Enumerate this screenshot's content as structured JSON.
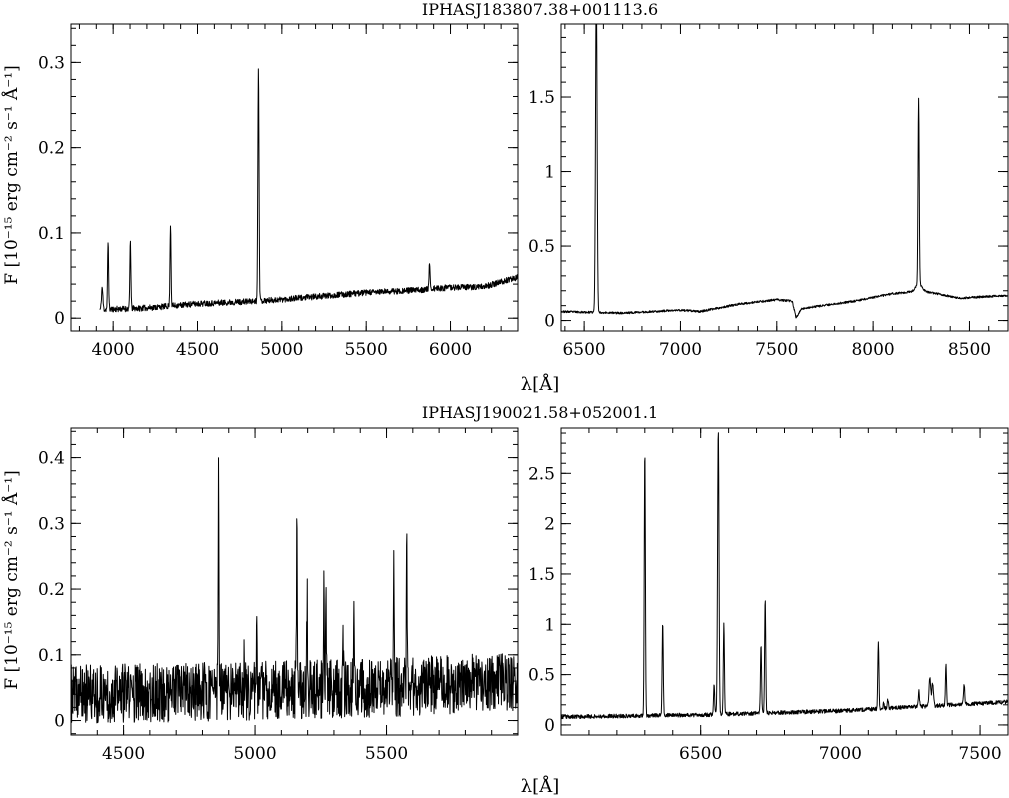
{
  "figure": {
    "xlabel": "λ[Å]",
    "ylabel": "F [10⁻¹⁵ erg cm⁻² s⁻¹ Å⁻¹]"
  },
  "chart_data": [
    {
      "type": "line",
      "title": "IPHASJ183807.38+001113.6",
      "xlabel": "λ[Å]",
      "ylabel": "F [10⁻¹⁵ erg cm⁻² s⁻¹ Å⁻¹]",
      "xlim": [
        3750,
        6400
      ],
      "ylim": [
        -0.015,
        0.345
      ],
      "xticks": [
        4000,
        4500,
        5000,
        5500,
        6000
      ],
      "yticks": [
        0,
        0.1,
        0.2,
        0.3
      ],
      "ytick_labels": [
        "0",
        "0.1",
        "0.2",
        "0.3"
      ],
      "x_minor_step": 100,
      "y_minor_step": 0.02,
      "grid": false,
      "x_range": [
        3920,
        6400
      ],
      "noise_amplitude": 0.0035,
      "continuum": [
        [
          3920,
          0.01
        ],
        [
          4200,
          0.012
        ],
        [
          4500,
          0.017
        ],
        [
          4850,
          0.02
        ],
        [
          5000,
          0.022
        ],
        [
          5500,
          0.03
        ],
        [
          5800,
          0.033
        ],
        [
          6000,
          0.036
        ],
        [
          6200,
          0.037
        ],
        [
          6400,
          0.048
        ]
      ],
      "lines": [
        [
          3935,
          0.026,
          4
        ],
        [
          3970,
          0.08,
          3
        ],
        [
          4102,
          0.08,
          3
        ],
        [
          4340,
          0.097,
          3
        ],
        [
          4861,
          0.272,
          3.5
        ],
        [
          5876,
          0.032,
          3
        ]
      ]
    },
    {
      "type": "line",
      "title": "",
      "xlabel": "λ[Å]",
      "ylabel": "",
      "xlim": [
        6380,
        8700
      ],
      "ylim": [
        -0.07,
        1.99
      ],
      "xticks": [
        6500,
        7000,
        7500,
        8000,
        8500
      ],
      "yticks": [
        0,
        0.5,
        1,
        1.5
      ],
      "ytick_labels": [
        "0",
        "0.5",
        "1",
        "1.5"
      ],
      "x_minor_step": 100,
      "y_minor_step": 0.1,
      "grid": false,
      "x_range": [
        6380,
        8700
      ],
      "noise_amplitude": 0.007,
      "continuum": [
        [
          6380,
          0.06
        ],
        [
          6700,
          0.05
        ],
        [
          7000,
          0.07
        ],
        [
          7100,
          0.06
        ],
        [
          7300,
          0.11
        ],
        [
          7500,
          0.14
        ],
        [
          7580,
          0.13
        ],
        [
          7600,
          0.02
        ],
        [
          7630,
          0.08
        ],
        [
          7900,
          0.13
        ],
        [
          8100,
          0.18
        ],
        [
          8250,
          0.2
        ],
        [
          8450,
          0.15
        ],
        [
          8700,
          0.17
        ]
      ],
      "lines": [
        [
          6563,
          2.2,
          4
        ],
        [
          8236,
          1.25,
          3
        ],
        [
          8236,
          0.05,
          15
        ]
      ]
    },
    {
      "type": "line",
      "title": "IPHASJ190021.58+052001.1",
      "xlabel": "λ[Å]",
      "ylabel": "F [10⁻¹⁵ erg cm⁻² s⁻¹ Å⁻¹]",
      "xlim": [
        4300,
        6000
      ],
      "ylim": [
        -0.022,
        0.445
      ],
      "xticks": [
        4500,
        5000,
        5500
      ],
      "yticks": [
        0,
        0.1,
        0.2,
        0.3,
        0.4
      ],
      "ytick_labels": [
        "0",
        "0.1",
        "0.2",
        "0.3",
        "0.4"
      ],
      "x_minor_step": 100,
      "y_minor_step": 0.02,
      "grid": false,
      "x_range": [
        4300,
        6000
      ],
      "noise_amplitude": 0.045,
      "continuum": [
        [
          4300,
          0.04
        ],
        [
          5000,
          0.045
        ],
        [
          5500,
          0.05
        ],
        [
          6000,
          0.06
        ]
      ],
      "lines": [
        [
          4861,
          0.33,
          1.5
        ],
        [
          4959,
          0.05,
          1.5
        ],
        [
          5007,
          0.12,
          1.5
        ],
        [
          5159,
          0.26,
          1.5
        ],
        [
          5198,
          0.14,
          1.5
        ],
        [
          5262,
          0.15,
          1.5
        ],
        [
          5270,
          0.14,
          1.5
        ],
        [
          5334,
          0.1,
          1.5
        ],
        [
          5376,
          0.1,
          1.5
        ],
        [
          5528,
          0.18,
          1.5
        ],
        [
          5577,
          0.23,
          1.5
        ]
      ]
    },
    {
      "type": "line",
      "title": "",
      "xlabel": "λ[Å]",
      "ylabel": "",
      "xlim": [
        6000,
        7600
      ],
      "ylim": [
        -0.1,
        2.95
      ],
      "xticks": [
        6500,
        7000,
        7500
      ],
      "yticks": [
        0,
        0.5,
        1,
        1.5,
        2,
        2.5
      ],
      "ytick_labels": [
        "0",
        "0.5",
        "1",
        "1.5",
        "2",
        "2.5"
      ],
      "x_minor_step": 100,
      "y_minor_step": 0.1,
      "grid": false,
      "x_range": [
        6000,
        7600
      ],
      "noise_amplitude": 0.02,
      "continuum": [
        [
          6000,
          0.08
        ],
        [
          6500,
          0.1
        ],
        [
          7000,
          0.14
        ],
        [
          7600,
          0.23
        ]
      ],
      "lines": [
        [
          6300,
          2.65,
          2
        ],
        [
          6364,
          0.92,
          2
        ],
        [
          6548,
          0.3,
          2
        ],
        [
          6563,
          2.85,
          2.5
        ],
        [
          6583,
          0.9,
          2
        ],
        [
          6716,
          0.68,
          2
        ],
        [
          6731,
          1.14,
          2
        ],
        [
          7136,
          0.68,
          2
        ],
        [
          7155,
          0.05,
          2
        ],
        [
          7170,
          0.08,
          2
        ],
        [
          7281,
          0.15,
          2
        ],
        [
          7320,
          0.28,
          3
        ],
        [
          7330,
          0.22,
          3
        ],
        [
          7378,
          0.4,
          2
        ],
        [
          7443,
          0.2,
          2
        ]
      ]
    }
  ]
}
